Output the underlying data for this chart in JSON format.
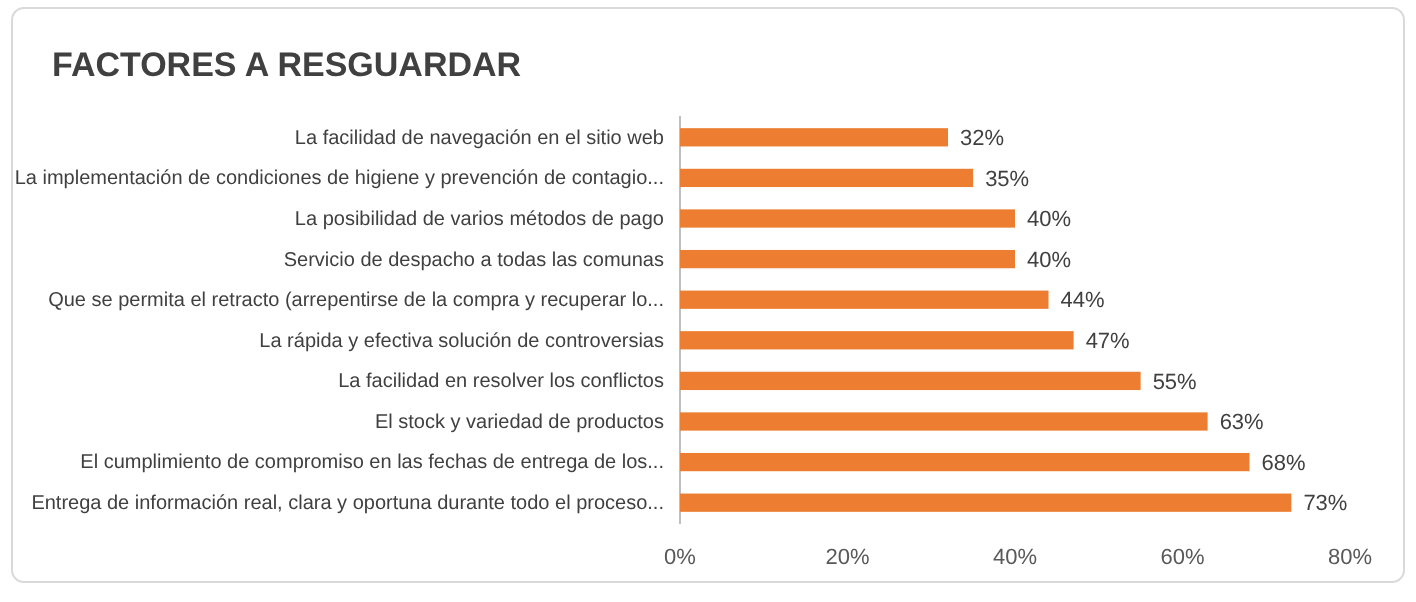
{
  "chart_data": {
    "type": "bar",
    "orientation": "horizontal",
    "title": "FACTORES A RESGUARDAR",
    "categories": [
      "La facilidad de navegación en el sitio web",
      "La implementación de condiciones de higiene y prevención de contagio...",
      "La posibilidad de varios métodos de pago",
      "Servicio de despacho a todas las comunas",
      "Que se permita el retracto (arrepentirse de la compra y recuperar lo...",
      "La rápida y efectiva solución de controversias",
      "La facilidad en resolver los conflictos",
      "El stock y variedad de productos",
      "El cumplimiento de compromiso en las fechas de entrega de los...",
      "Entrega de información real, clara y oportuna durante todo el proceso..."
    ],
    "values": [
      32,
      35,
      40,
      40,
      44,
      47,
      55,
      63,
      68,
      73
    ],
    "value_labels": [
      "32%",
      "35%",
      "40%",
      "40%",
      "44%",
      "47%",
      "55%",
      "63%",
      "68%",
      "73%"
    ],
    "color": "#ed7d31",
    "xlim": [
      0,
      80
    ],
    "xticks": [
      {
        "value": 0,
        "label": "0%"
      },
      {
        "value": 20,
        "label": "20%"
      },
      {
        "value": 40,
        "label": "40%"
      },
      {
        "value": 60,
        "label": "60%"
      },
      {
        "value": 80,
        "label": "80%"
      }
    ],
    "grid": false
  }
}
